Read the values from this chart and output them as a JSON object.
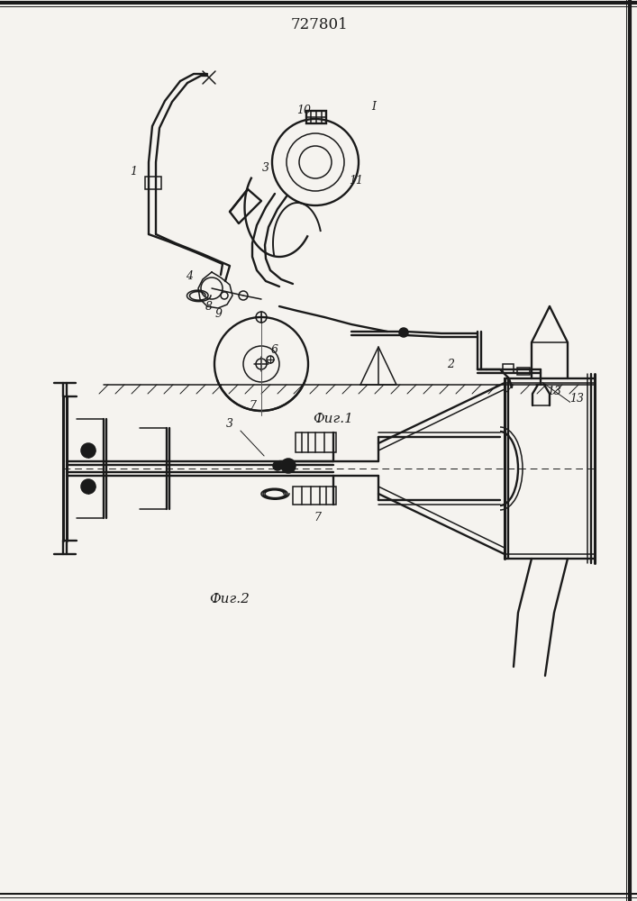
{
  "title": "727801",
  "fig1_label": "Фиг.1",
  "fig2_label": "Фиг.2",
  "background_color": "#f5f3ef",
  "line_color": "#1a1a1a",
  "border_color": "#222222",
  "fig_width": 7.07,
  "fig_height": 10.0,
  "dpi": 100
}
